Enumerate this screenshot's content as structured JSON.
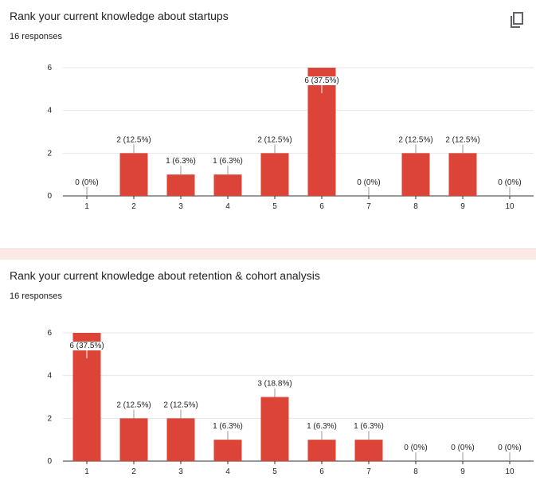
{
  "questions": [
    {
      "title": "Rank your current knowledge about startups",
      "responses": "16 responses",
      "copy_icon": "copy-icon"
    },
    {
      "title": "Rank your current knowledge about retention & cohort analysis",
      "responses": "16 responses"
    }
  ],
  "chart_data": [
    {
      "type": "bar",
      "categories": [
        "1",
        "2",
        "3",
        "4",
        "5",
        "6",
        "7",
        "8",
        "9",
        "10"
      ],
      "values": [
        0,
        2,
        1,
        1,
        2,
        6,
        0,
        2,
        2,
        0
      ],
      "data_labels": [
        "0 (0%)",
        "2 (12.5%)",
        "1 (6.3%)",
        "1 (6.3%)",
        "2 (12.5%)",
        "6 (37.5%)",
        "0 (0%)",
        "2 (12.5%)",
        "2 (12.5%)",
        "0 (0%)"
      ],
      "yticks": [
        "0",
        "2",
        "4",
        "6"
      ],
      "ylim": [
        0,
        6
      ],
      "grid": true,
      "bar_color": "#db4437"
    },
    {
      "type": "bar",
      "categories": [
        "1",
        "2",
        "3",
        "4",
        "5",
        "6",
        "7",
        "8",
        "9",
        "10"
      ],
      "values": [
        6,
        2,
        2,
        1,
        3,
        1,
        1,
        0,
        0,
        0
      ],
      "data_labels": [
        "6 (37.5%)",
        "2 (12.5%)",
        "2 (12.5%)",
        "1 (6.3%)",
        "3 (18.8%)",
        "1 (6.3%)",
        "1 (6.3%)",
        "0 (0%)",
        "0 (0%)",
        "0 (0%)"
      ],
      "yticks": [
        "0",
        "2",
        "4",
        "6"
      ],
      "ylim": [
        0,
        6
      ],
      "grid": true,
      "bar_color": "#db4437"
    }
  ]
}
